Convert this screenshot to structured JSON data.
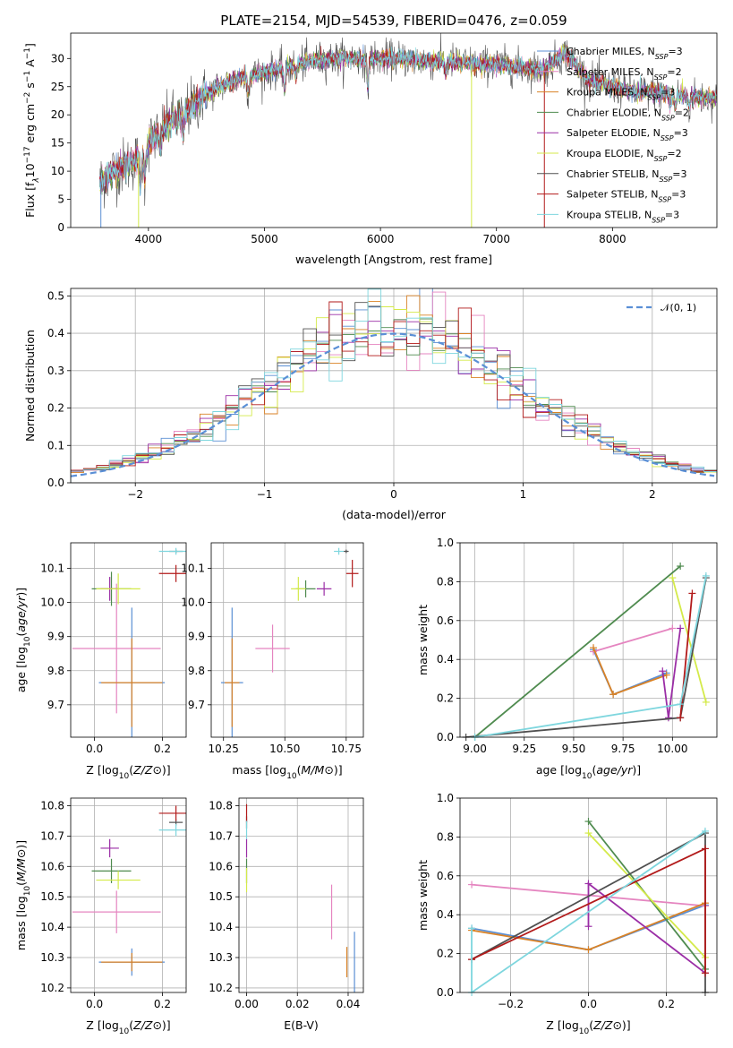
{
  "figure": {
    "title": "PLATE=2154, MJD=54539, FIBERID=0476, z=0.059"
  },
  "colors": {
    "Chabrier MILES": "#5b8fd4",
    "Salpeter MILES": "#e585c0",
    "Kroupa MILES": "#d98226",
    "Chabrier ELODIE": "#4f8b4f",
    "Salpeter ELODIE": "#9b2ea6",
    "Kroupa ELODIE": "#d4ea4a",
    "Chabrier STELIB": "#505050",
    "Salpeter STELIB": "#b21a1a",
    "Kroupa STELIB": "#7ed6de"
  },
  "legend": {
    "entries": [
      {
        "label": "Chabrier MILES, N",
        "sub": "SSP",
        "rest": "=3"
      },
      {
        "label": "Salpeter MILES, N",
        "sub": "SSP",
        "rest": "=2"
      },
      {
        "label": "Kroupa MILES, N",
        "sub": "SSP",
        "rest": "=3"
      },
      {
        "label": "Chabrier ELODIE, N",
        "sub": "SSP",
        "rest": "=2"
      },
      {
        "label": "Salpeter ELODIE, N",
        "sub": "SSP",
        "rest": "=3"
      },
      {
        "label": "Kroupa ELODIE, N",
        "sub": "SSP",
        "rest": "=2"
      },
      {
        "label": "Chabrier STELIB, N",
        "sub": "SSP",
        "rest": "=3"
      },
      {
        "label": "Salpeter STELIB, N",
        "sub": "SSP",
        "rest": "=3"
      },
      {
        "label": "Kroupa STELIB, N",
        "sub": "SSP",
        "rest": "=3"
      }
    ],
    "normal_label": "𝒩(0, 1)"
  },
  "chart_data": [
    {
      "id": "spectrum",
      "type": "line",
      "xlabel": "wavelength [Angstrom, rest frame]",
      "ylabel_parts": [
        "Flux [f",
        "λ",
        "10",
        "−17",
        " erg cm",
        "−2",
        " s",
        "−1",
        " A",
        "−1",
        "]"
      ],
      "xlim": [
        3330,
        8900
      ],
      "ylim": [
        0,
        34.5
      ],
      "xticks": [
        4000,
        5000,
        6000,
        7000,
        8000
      ],
      "yticks": [
        0,
        5,
        10,
        15,
        20,
        25,
        30
      ],
      "continuum_x": [
        3580,
        3700,
        3800,
        3900,
        4000,
        4100,
        4200,
        4300,
        4400,
        4600,
        4800,
        5000,
        5200,
        5400,
        5600,
        5800,
        6000,
        6200,
        6400,
        6600,
        6800,
        7000,
        7200,
        7400,
        7600,
        7800,
        8000,
        8200,
        8400,
        8600,
        8800
      ],
      "continuum_y": [
        8,
        10,
        11,
        12,
        15,
        17,
        19,
        20,
        22,
        25,
        26.5,
        27.5,
        28.5,
        29.5,
        30,
        30,
        30,
        30,
        29.5,
        29.5,
        29,
        29,
        28.5,
        28,
        31,
        26,
        25,
        24,
        24,
        23.5,
        23
      ],
      "absorption_lines": [
        {
          "x": 3933,
          "depth": 6
        },
        {
          "x": 3968,
          "depth": 5
        },
        {
          "x": 4101,
          "depth": 3
        },
        {
          "x": 4300,
          "depth": 3
        },
        {
          "x": 4861,
          "depth": 3
        },
        {
          "x": 5175,
          "depth": 4
        },
        {
          "x": 5270,
          "depth": 2
        },
        {
          "x": 5890,
          "depth": 5
        },
        {
          "x": 6563,
          "depth": 2
        },
        {
          "x": 8498,
          "depth": 2
        },
        {
          "x": 8542,
          "depth": 2
        },
        {
          "x": 8662,
          "depth": 2
        }
      ],
      "spikes": [
        {
          "x": 3590,
          "series": "Chabrier MILES"
        },
        {
          "x": 3915,
          "series": "Kroupa ELODIE"
        },
        {
          "x": 6785,
          "series": "Kroupa ELODIE"
        },
        {
          "x": 7413,
          "series": "Salpeter STELIB"
        }
      ],
      "wavelength_range": [
        3580,
        8900
      ]
    },
    {
      "id": "residuals",
      "type": "bar",
      "xlabel": "(data-model)/error",
      "ylabel": "Normed distribution",
      "xlim": [
        -2.5,
        2.5
      ],
      "ylim": [
        0,
        0.52
      ],
      "xticks": [
        -2,
        -1,
        0,
        1,
        2
      ],
      "xticklabels": [
        "−2",
        "−1",
        "0",
        "1",
        "2"
      ],
      "yticks": [
        0.0,
        0.1,
        0.2,
        0.3,
        0.4,
        0.5
      ],
      "yticklabels": [
        "0.0",
        "0.1",
        "0.2",
        "0.3",
        "0.4",
        "0.5"
      ],
      "bin_width": 0.1,
      "legend_placement": "top-right",
      "series_name": "𝒩(0, 1)"
    },
    {
      "id": "age_vs_Z",
      "type": "scatter",
      "xlabel": "Z [log10(Z/Z⊙)]",
      "ylabel": "age  [log10(age/yr)]",
      "xlim": [
        -0.07,
        0.27
      ],
      "ylim": [
        9.605,
        10.175
      ],
      "xticks": [
        0.0,
        0.2
      ],
      "xticklabels": [
        "0.0",
        "0.2"
      ],
      "yticks": [
        9.7,
        9.8,
        9.9,
        10.0,
        10.1
      ],
      "yticklabels": [
        "9.7",
        "9.8",
        "9.9",
        "10.0",
        "10.1"
      ],
      "points": [
        {
          "series": "Chabrier MILES",
          "x": 0.11,
          "y": 9.765,
          "xerr": 0.097,
          "yerr": 0.22
        },
        {
          "series": "Salpeter MILES",
          "x": 0.065,
          "y": 9.865,
          "xerr": 0.13,
          "yerr": 0.19
        },
        {
          "series": "Kroupa MILES",
          "x": 0.11,
          "y": 9.765,
          "xerr": 0.09,
          "yerr": 0.13
        },
        {
          "series": "Chabrier ELODIE",
          "x": 0.05,
          "y": 10.04,
          "xerr": 0.058,
          "yerr": 0.05
        },
        {
          "series": "Salpeter ELODIE",
          "x": 0.045,
          "y": 10.04,
          "xerr": 0.027,
          "yerr": 0.035
        },
        {
          "series": "Kroupa ELODIE",
          "x": 0.07,
          "y": 10.04,
          "xerr": 0.065,
          "yerr": 0.045
        },
        {
          "series": "Chabrier STELIB",
          "x": 0.24,
          "y": 10.15,
          "xerr": 0.02,
          "yerr": 0.005
        },
        {
          "series": "Salpeter STELIB",
          "x": 0.24,
          "y": 10.085,
          "xerr": 0.05,
          "yerr": 0.025
        },
        {
          "series": "Kroupa STELIB",
          "x": 0.24,
          "y": 10.15,
          "xerr": 0.05,
          "yerr": 0.01
        }
      ]
    },
    {
      "id": "age_vs_mass",
      "type": "scatter",
      "xlabel": "mass [log10(M/M⊙)]",
      "ylabel": "",
      "xlim": [
        10.2,
        10.82
      ],
      "ylim": [
        9.605,
        10.175
      ],
      "xticks": [
        10.25,
        10.5,
        10.75
      ],
      "xticklabels": [
        "10.25",
        "10.50",
        "10.75"
      ],
      "yticks": [
        9.7,
        9.8,
        9.9,
        10.0,
        10.1
      ],
      "yticklabels": [
        "9.7",
        "9.8",
        "9.9",
        "10.0",
        "10.1"
      ],
      "points": [
        {
          "series": "Chabrier MILES",
          "x": 10.285,
          "y": 9.765,
          "xerr": 0.045,
          "yerr": 0.22
        },
        {
          "series": "Salpeter MILES",
          "x": 10.45,
          "y": 9.865,
          "xerr": 0.07,
          "yerr": 0.07
        },
        {
          "series": "Kroupa MILES",
          "x": 10.285,
          "y": 9.765,
          "xerr": 0.03,
          "yerr": 0.13
        },
        {
          "series": "Chabrier ELODIE",
          "x": 10.585,
          "y": 10.04,
          "xerr": 0.04,
          "yerr": 0.025
        },
        {
          "series": "Salpeter ELODIE",
          "x": 10.66,
          "y": 10.04,
          "xerr": 0.03,
          "yerr": 0.02
        },
        {
          "series": "Kroupa ELODIE",
          "x": 10.555,
          "y": 10.04,
          "xerr": 0.03,
          "yerr": 0.035
        },
        {
          "series": "Chabrier STELIB",
          "x": 10.75,
          "y": 10.15,
          "xerr": 0.01,
          "yerr": 0.005
        },
        {
          "series": "Salpeter STELIB",
          "x": 10.775,
          "y": 10.085,
          "xerr": 0.025,
          "yerr": 0.04
        },
        {
          "series": "Kroupa STELIB",
          "x": 10.72,
          "y": 10.15,
          "xerr": 0.02,
          "yerr": 0.01
        }
      ]
    },
    {
      "id": "weight_vs_age",
      "type": "line",
      "xlabel": "age  [log10(age/yr)]",
      "ylabel": "mass weight",
      "xlim": [
        8.925,
        10.225
      ],
      "ylim": [
        0.0,
        1.0
      ],
      "xticks": [
        9.0,
        9.25,
        9.5,
        9.75,
        10.0
      ],
      "xticklabels": [
        "9.00",
        "9.25",
        "9.50",
        "9.75",
        "10.00"
      ],
      "yticks": [
        0.0,
        0.2,
        0.4,
        0.6,
        0.8,
        1.0
      ],
      "yticklabels": [
        "0.0",
        "0.2",
        "0.4",
        "0.6",
        "0.8",
        "1.0"
      ],
      "series": [
        {
          "series": "Chabrier MILES",
          "x": [
            9.6,
            9.7,
            9.97
          ],
          "y": [
            0.45,
            0.22,
            0.33
          ]
        },
        {
          "series": "Salpeter MILES",
          "x": [
            9.6,
            10.0
          ],
          "y": [
            0.44,
            0.56
          ]
        },
        {
          "series": "Kroupa MILES",
          "x": [
            9.6,
            9.7,
            9.97
          ],
          "y": [
            0.46,
            0.22,
            0.32
          ]
        },
        {
          "series": "Chabrier ELODIE",
          "x": [
            9.0,
            10.04
          ],
          "y": [
            0.0,
            0.88
          ]
        },
        {
          "series": "Salpeter ELODIE",
          "x": [
            9.95,
            9.98,
            10.04
          ],
          "y": [
            0.34,
            0.1,
            0.56
          ]
        },
        {
          "series": "Kroupa ELODIE",
          "x": [
            10.0,
            10.17
          ],
          "y": [
            0.82,
            0.18
          ]
        },
        {
          "series": "Chabrier STELIB",
          "x": [
            8.955,
            10.04,
            10.17
          ],
          "y": [
            0.0,
            0.1,
            0.82
          ]
        },
        {
          "series": "Salpeter STELIB",
          "x": [
            10.04,
            10.1
          ],
          "y": [
            0.1,
            0.74
          ]
        },
        {
          "series": "Kroupa STELIB",
          "x": [
            9.0,
            10.04,
            10.17
          ],
          "y": [
            0.0,
            0.17,
            0.83
          ]
        }
      ]
    },
    {
      "id": "mass_vs_Z",
      "type": "scatter",
      "xlabel": "Z [log10(Z/Z⊙)]",
      "ylabel": "mass [log10(M/M⊙)]",
      "xlim": [
        -0.07,
        0.27
      ],
      "ylim": [
        10.185,
        10.825
      ],
      "xticks": [
        0.0,
        0.2
      ],
      "xticklabels": [
        "0.0",
        "0.2"
      ],
      "yticks": [
        10.2,
        10.3,
        10.4,
        10.5,
        10.6,
        10.7,
        10.8
      ],
      "yticklabels": [
        "10.2",
        "10.3",
        "10.4",
        "10.5",
        "10.6",
        "10.7",
        "10.8"
      ],
      "points": [
        {
          "series": "Chabrier MILES",
          "x": 0.11,
          "y": 10.285,
          "xerr": 0.097,
          "yerr": 0.045
        },
        {
          "series": "Salpeter MILES",
          "x": 0.065,
          "y": 10.45,
          "xerr": 0.13,
          "yerr": 0.07
        },
        {
          "series": "Kroupa MILES",
          "x": 0.11,
          "y": 10.285,
          "xerr": 0.09,
          "yerr": 0.03
        },
        {
          "series": "Chabrier ELODIE",
          "x": 0.05,
          "y": 10.585,
          "xerr": 0.058,
          "yerr": 0.04
        },
        {
          "series": "Salpeter ELODIE",
          "x": 0.045,
          "y": 10.66,
          "xerr": 0.027,
          "yerr": 0.03
        },
        {
          "series": "Kroupa ELODIE",
          "x": 0.07,
          "y": 10.555,
          "xerr": 0.065,
          "yerr": 0.03
        },
        {
          "series": "Chabrier STELIB",
          "x": 0.24,
          "y": 10.745,
          "xerr": 0.02,
          "yerr": 0.01
        },
        {
          "series": "Salpeter STELIB",
          "x": 0.24,
          "y": 10.775,
          "xerr": 0.05,
          "yerr": 0.025
        },
        {
          "series": "Kroupa STELIB",
          "x": 0.24,
          "y": 10.72,
          "xerr": 0.05,
          "yerr": 0.02
        }
      ]
    },
    {
      "id": "mass_vs_ebv",
      "type": "scatter",
      "xlabel": "E(B-V)",
      "ylabel": "",
      "xlim": [
        -0.003,
        0.046
      ],
      "ylim": [
        10.185,
        10.825
      ],
      "xticks": [
        0.0,
        0.02,
        0.04
      ],
      "xticklabels": [
        "0.00",
        "0.02",
        "0.04"
      ],
      "yticks": [
        10.2,
        10.3,
        10.4,
        10.5,
        10.6,
        10.7,
        10.8
      ],
      "yticklabels": [
        "10.2",
        "10.3",
        "10.4",
        "10.5",
        "10.6",
        "10.7",
        "10.8"
      ],
      "points": [
        {
          "series": "Chabrier MILES",
          "x": 0.0425,
          "y": 10.285,
          "xerr": 0.0,
          "yerr": 0.1
        },
        {
          "series": "Salpeter MILES",
          "x": 0.0335,
          "y": 10.45,
          "xerr": 0.0,
          "yerr": 0.09
        },
        {
          "series": "Kroupa MILES",
          "x": 0.0395,
          "y": 10.285,
          "xerr": 0.0,
          "yerr": 0.05
        },
        {
          "series": "Chabrier ELODIE",
          "x": 0.0,
          "y": 10.585,
          "xerr": 0.0,
          "yerr": 0.04
        },
        {
          "series": "Salpeter ELODIE",
          "x": 0.0,
          "y": 10.66,
          "xerr": 0.0,
          "yerr": 0.03
        },
        {
          "series": "Kroupa ELODIE",
          "x": 0.0,
          "y": 10.555,
          "xerr": 0.0,
          "yerr": 0.04
        },
        {
          "series": "Chabrier STELIB",
          "x": 0.0,
          "y": 10.745,
          "xerr": 0.0,
          "yerr": 0.02
        },
        {
          "series": "Salpeter STELIB",
          "x": 0.0,
          "y": 10.775,
          "xerr": 0.0,
          "yerr": 0.03
        },
        {
          "series": "Kroupa STELIB",
          "x": 0.0,
          "y": 10.72,
          "xerr": 0.0,
          "yerr": 0.03
        }
      ]
    },
    {
      "id": "weight_vs_Z",
      "type": "line",
      "xlabel": "Z [log10(Z/Z⊙)]",
      "ylabel": "mass weight",
      "xlim": [
        -0.33,
        0.33
      ],
      "ylim": [
        0.0,
        1.0
      ],
      "xticks": [
        -0.2,
        0.0,
        0.2
      ],
      "xticklabels": [
        "−0.2",
        "0.0",
        "0.2"
      ],
      "yticks": [
        0.0,
        0.2,
        0.4,
        0.6,
        0.8,
        1.0
      ],
      "yticklabels": [
        "0.0",
        "0.2",
        "0.4",
        "0.6",
        "0.8",
        "1.0"
      ],
      "series": [
        {
          "series": "Chabrier MILES",
          "x": [
            -0.3,
            0.0,
            0.3
          ],
          "y": [
            0.33,
            0.22,
            0.45
          ]
        },
        {
          "series": "Salpeter MILES",
          "x": [
            -0.3,
            0.3
          ],
          "y": [
            0.555,
            0.445
          ]
        },
        {
          "series": "Kroupa MILES",
          "x": [
            -0.3,
            0.0,
            0.3
          ],
          "y": [
            0.32,
            0.22,
            0.46
          ]
        },
        {
          "series": "Chabrier ELODIE",
          "x": [
            0.0,
            0.3
          ],
          "y": [
            0.88,
            0.12
          ]
        },
        {
          "series": "Salpeter ELODIE",
          "x": [
            0.0,
            0.0,
            0.3
          ],
          "y": [
            0.34,
            0.56,
            0.1
          ]
        },
        {
          "series": "Kroupa ELODIE",
          "x": [
            0.0,
            0.3
          ],
          "y": [
            0.82,
            0.18
          ]
        },
        {
          "series": "Chabrier STELIB",
          "x": [
            -0.3,
            0.3,
            0.3
          ],
          "y": [
            0.17,
            0.82,
            0.0
          ]
        },
        {
          "series": "Salpeter STELIB",
          "x": [
            -0.3,
            0.3,
            0.3
          ],
          "y": [
            0.17,
            0.74,
            0.1
          ]
        },
        {
          "series": "Kroupa STELIB",
          "x": [
            -0.3,
            -0.3,
            0.3
          ],
          "y": [
            0.33,
            0.0,
            0.83
          ]
        }
      ]
    }
  ]
}
